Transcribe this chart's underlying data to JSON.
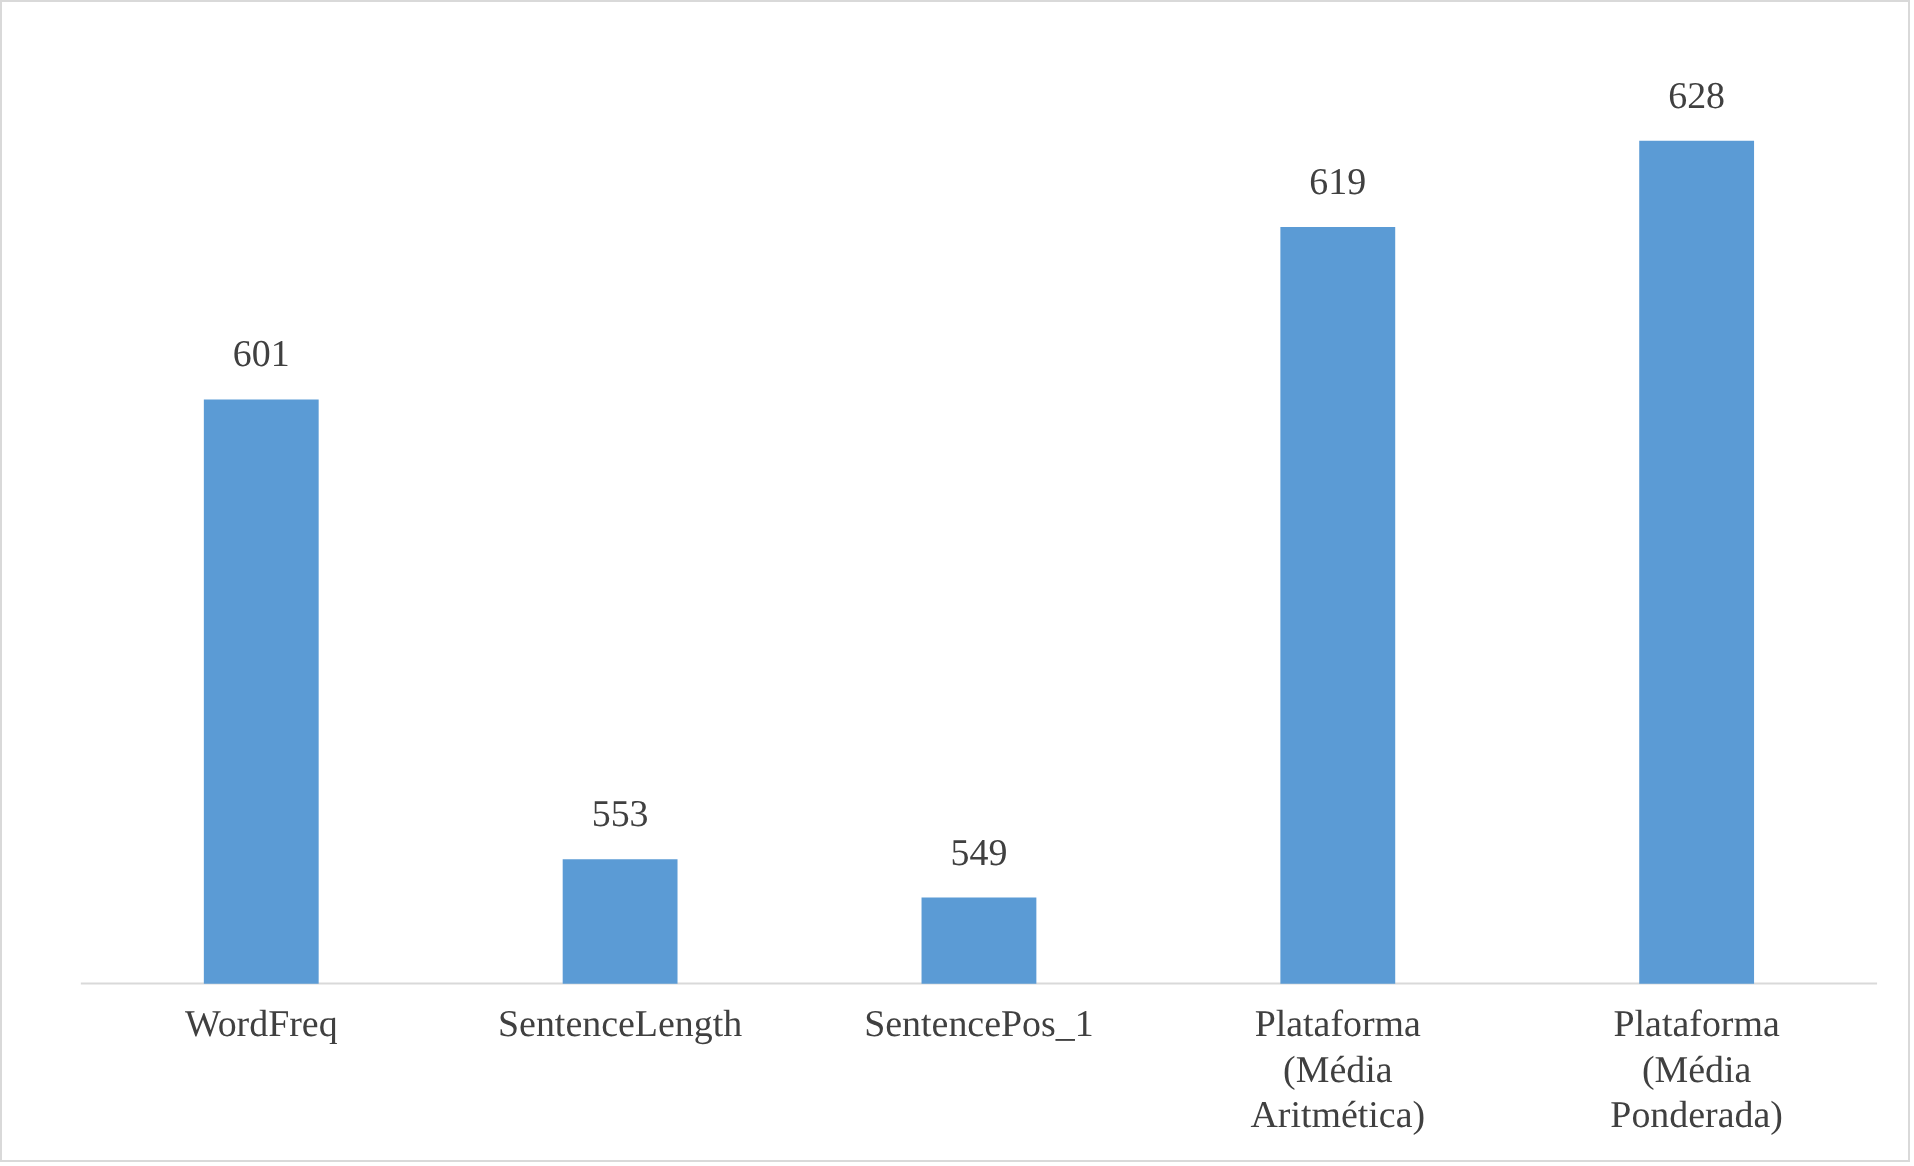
{
  "chart_data": {
    "type": "bar",
    "categories": [
      "WordFreq",
      "SentenceLength",
      "SentencePos_1",
      "Plataforma (Média Aritmética)",
      "Plataforma (Média Ponderada)"
    ],
    "values": [
      601,
      553,
      549,
      619,
      628
    ],
    "color": "#5b9bd5",
    "tick_labels": "x",
    "data_labels": true,
    "grid": false,
    "legend": false
  }
}
